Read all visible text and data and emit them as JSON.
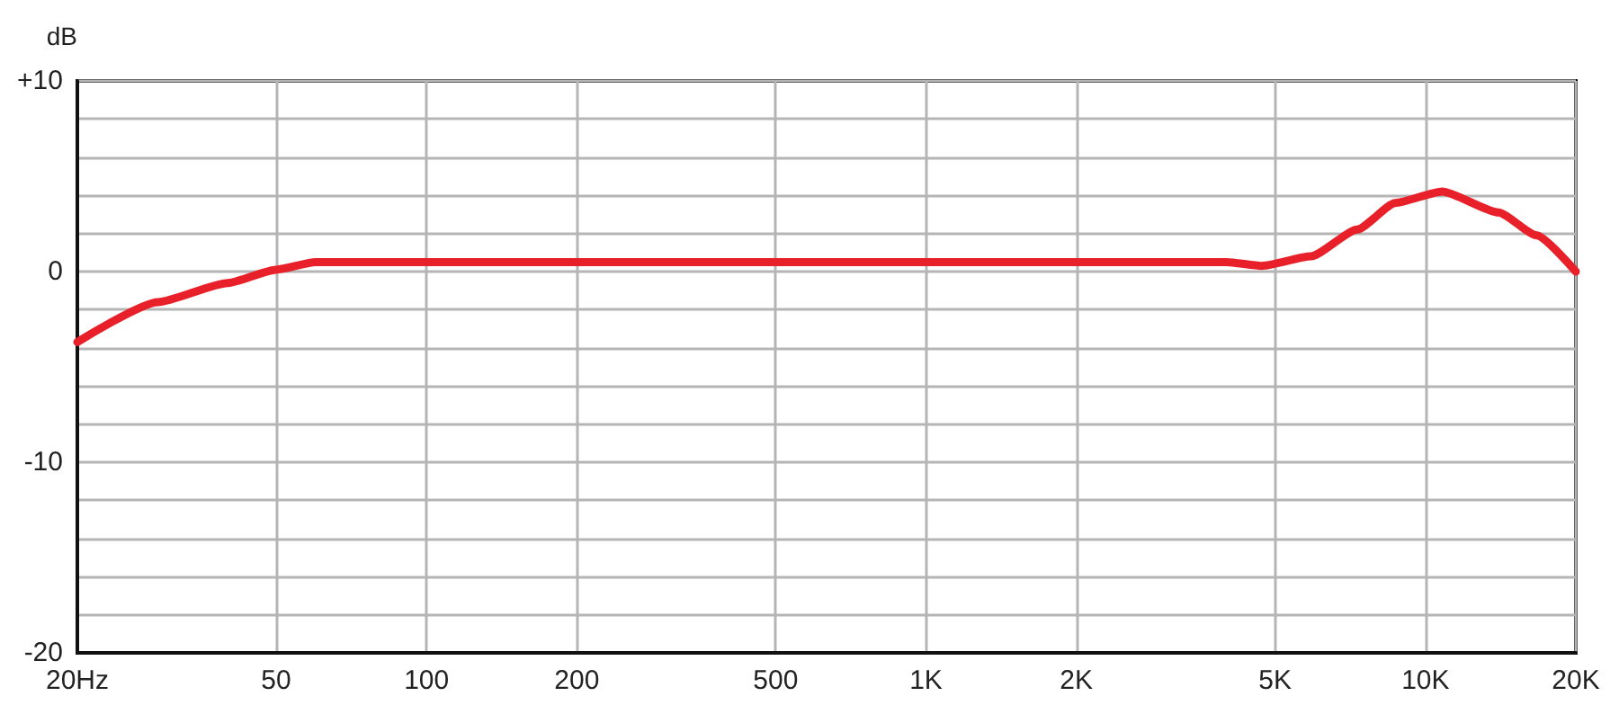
{
  "chart_data": {
    "type": "line",
    "ylabel": "dB",
    "log": "x",
    "grid": true,
    "marker": "none",
    "line_style": "solid",
    "xlim": [
      20,
      20000
    ],
    "xticks": [
      {
        "value": 20,
        "label": "20Hz"
      },
      50,
      100,
      200,
      500,
      {
        "value": 1000,
        "label": "1K"
      },
      {
        "value": 2000,
        "label": "2K"
      },
      {
        "value": 5000,
        "label": "5K"
      },
      {
        "value": 10000,
        "label": "10K"
      },
      {
        "value": 20000,
        "label": "20K"
      }
    ],
    "ylim": [
      -20,
      10
    ],
    "yticks": [
      {
        "value": -20,
        "label": "-20"
      },
      {
        "value": -18,
        "label": null
      },
      {
        "value": -16,
        "label": null
      },
      {
        "value": -14,
        "label": null
      },
      {
        "value": -12,
        "label": null
      },
      {
        "value": -10,
        "label": "-10"
      },
      {
        "value": -8,
        "label": null
      },
      {
        "value": -6,
        "label": null
      },
      {
        "value": -4,
        "label": null
      },
      {
        "value": -2,
        "label": null
      },
      0,
      {
        "value": 2,
        "label": null
      },
      {
        "value": 4,
        "label": null
      },
      {
        "value": 6,
        "label": null
      },
      {
        "value": 8,
        "label": null
      },
      {
        "value": 10,
        "label": "+10"
      }
    ],
    "series": [
      {
        "color": "#e8202a",
        "x": [
          20,
          29,
          40,
          50,
          60,
          100,
          1000,
          4000,
          4700,
          5900,
          7300,
          8700,
          10800,
          14000,
          16700,
          20000
        ],
        "values": [
          -3.7,
          -1.6,
          -0.6,
          0.1,
          0.5,
          0.5,
          0.5,
          0.5,
          0.3,
          0.8,
          2.2,
          3.6,
          4.2,
          3.1,
          1.9,
          0
        ]
      }
    ]
  }
}
